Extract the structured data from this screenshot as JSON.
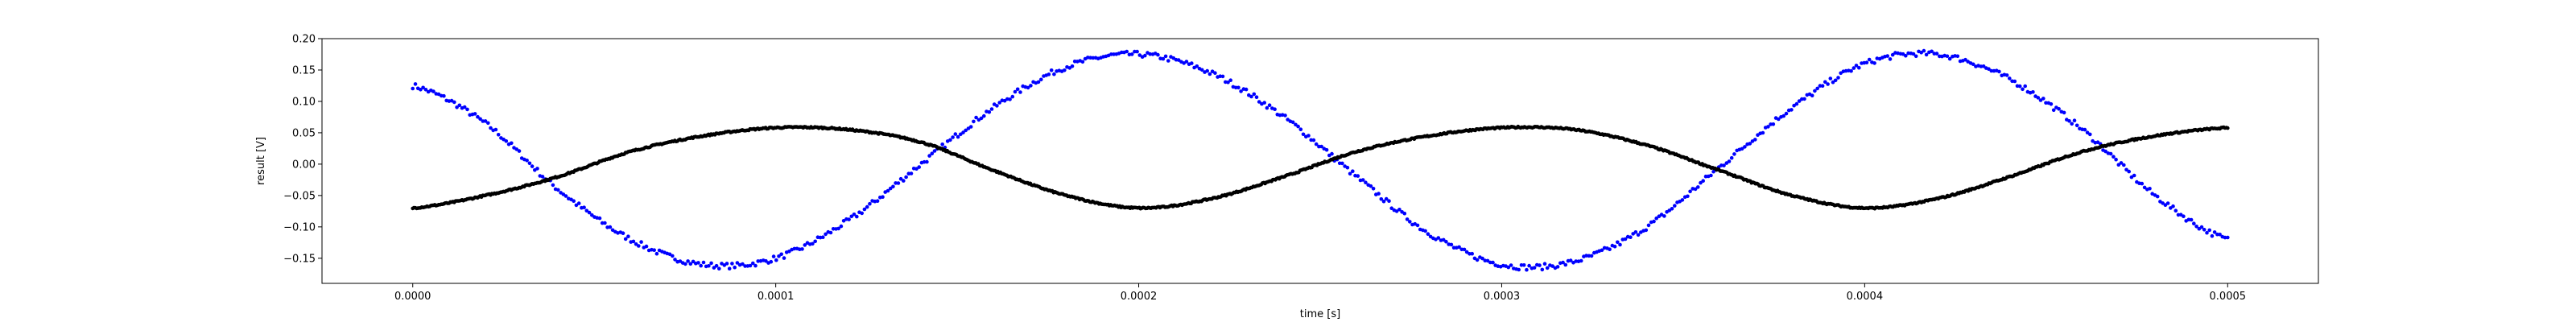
{
  "chart_data": {
    "type": "scatter",
    "title": "",
    "xlabel": "time [s]",
    "ylabel": "result [V]",
    "xlim": [
      -2.5e-05,
      0.000525
    ],
    "ylim": [
      -0.19,
      0.2
    ],
    "x_ticks": [
      0.0,
      0.0001,
      0.0002,
      0.0003,
      0.0004,
      0.0005
    ],
    "x_tick_labels": [
      "0.0000",
      "0.0001",
      "0.0002",
      "0.0003",
      "0.0004",
      "0.0005"
    ],
    "y_ticks": [
      -0.15,
      -0.1,
      -0.05,
      0.0,
      0.05,
      0.1,
      0.15,
      0.2
    ],
    "y_tick_labels": [
      "−0.15",
      "−0.10",
      "−0.05",
      "0.00",
      "0.05",
      "0.10",
      "0.15",
      "0.20"
    ],
    "grid": false,
    "legend": "none",
    "series": [
      {
        "color": "#0000ff",
        "x": [
          0.0,
          2e-05,
          4e-05,
          6e-05,
          8e-05,
          0.0001,
          0.00012,
          0.00014,
          0.00016,
          0.00018,
          0.0002,
          0.00022,
          0.00024,
          0.00026,
          0.00028,
          0.0003,
          0.00032,
          0.00034,
          0.00036,
          0.00038,
          0.0004,
          0.00042,
          0.00044,
          0.00046,
          0.00048,
          0.0005
        ],
        "values": [
          0.125,
          0.065,
          -0.04,
          -0.12,
          -0.16,
          -0.15,
          -0.09,
          0.0,
          0.09,
          0.155,
          0.175,
          0.145,
          0.075,
          -0.02,
          -0.11,
          -0.16,
          -0.155,
          -0.1,
          -0.005,
          0.09,
          0.16,
          0.175,
          0.135,
          0.055,
          -0.05,
          -0.12
        ]
      },
      {
        "color": "#000000",
        "x": [
          0.0,
          2e-05,
          4e-05,
          6e-05,
          8e-05,
          0.0001,
          0.00012,
          0.00014,
          0.00016,
          0.00018,
          0.0002,
          0.00022,
          0.00024,
          0.00026,
          0.00028,
          0.0003,
          0.00032,
          0.00034,
          0.00036,
          0.00038,
          0.0004,
          0.00042,
          0.00044,
          0.00046,
          0.00048,
          0.0005
        ],
        "values": [
          -0.07,
          -0.05,
          -0.02,
          0.02,
          0.045,
          0.058,
          0.055,
          0.035,
          -0.01,
          -0.05,
          -0.07,
          -0.055,
          -0.02,
          0.02,
          0.045,
          0.058,
          0.055,
          0.03,
          -0.01,
          -0.05,
          -0.07,
          -0.055,
          -0.02,
          0.02,
          0.045,
          0.058
        ]
      }
    ]
  }
}
